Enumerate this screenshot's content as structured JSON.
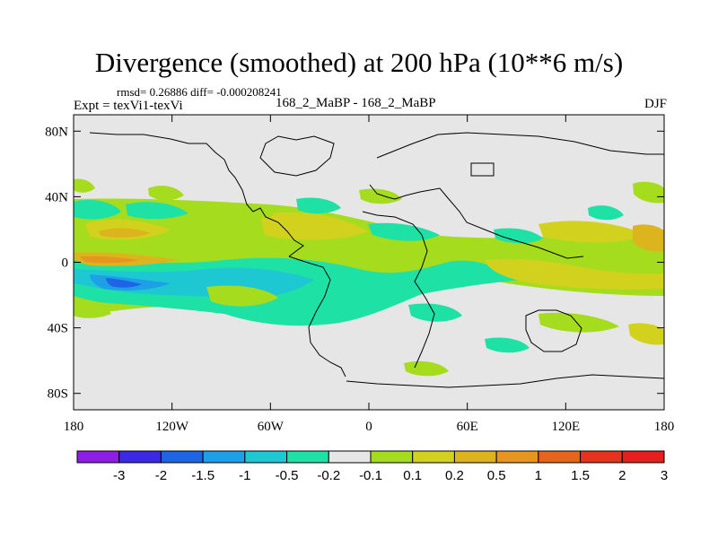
{
  "header": {
    "title": "Divergence (smoothed) at 200 hPa (10**6 m/s)",
    "stats": "rmsd= 0.26886 diff= -0.000208241",
    "experiment": "Expt = texVi1-texVi",
    "comparison": "168_2_MaBP - 168_2_MaBP",
    "season": "DJF"
  },
  "map": {
    "lat_range": [
      -90,
      90
    ],
    "lon_range": [
      -180,
      180
    ],
    "lat_ticks": [
      {
        "value": 80,
        "label": "80N"
      },
      {
        "value": 40,
        "label": "40N"
      },
      {
        "value": 0,
        "label": "0"
      },
      {
        "value": -40,
        "label": "40S"
      },
      {
        "value": -80,
        "label": "80S"
      }
    ],
    "lon_ticks": [
      {
        "value": -180,
        "label": "180"
      },
      {
        "value": -120,
        "label": "120W"
      },
      {
        "value": -60,
        "label": "60W"
      },
      {
        "value": 0,
        "label": "0"
      },
      {
        "value": 60,
        "label": "60E"
      },
      {
        "value": 120,
        "label": "120E"
      },
      {
        "value": 180,
        "label": "180"
      }
    ]
  },
  "colorbar": {
    "colors": [
      "#8c1ee6",
      "#3c28e6",
      "#1e64e6",
      "#1ea0e6",
      "#1ec8d2",
      "#1ee1a5",
      "#e6e6e6",
      "#a5dc1e",
      "#d2d21e",
      "#dcb41e",
      "#e6961e",
      "#e6641e",
      "#e6321e",
      "#e61e1e"
    ],
    "labels": [
      "-3",
      "-2",
      "-1.5",
      "-1",
      "-0.5",
      "-0.2",
      "-0.1",
      "0.1",
      "0.2",
      "0.5",
      "1",
      "1.5",
      "2",
      "3"
    ]
  },
  "colors": {
    "background": "#e6e6e6",
    "coast": "#000000"
  }
}
